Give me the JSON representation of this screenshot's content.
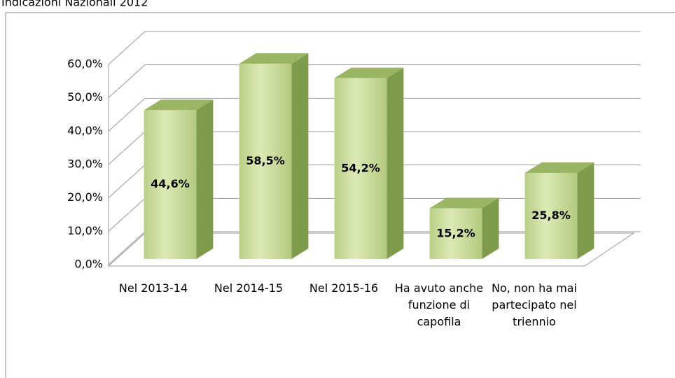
{
  "chart_data": {
    "type": "bar3d",
    "title": "Indicazioni Nazionali 2012",
    "categories": [
      "Nel 2013-14",
      "Nel 2014-15",
      "Nel 2015-16",
      "Ha avuto anche funzione di capofila",
      "No, non ha mai partecipato nel triennio"
    ],
    "values": [
      44.6,
      58.5,
      54.2,
      15.2,
      25.8
    ],
    "value_labels": [
      "44,6%",
      "58,5%",
      "54,2%",
      "15,2%",
      "25,8%"
    ],
    "color": "#c3d69b",
    "ylim": [
      0,
      60
    ],
    "yticks": [
      {
        "value": 0,
        "label": "0,0%"
      },
      {
        "value": 10,
        "label": "10,0%"
      },
      {
        "value": 20,
        "label": "20,0%"
      },
      {
        "value": 30,
        "label": "30,0%"
      },
      {
        "value": 40,
        "label": "40,0%"
      },
      {
        "value": 50,
        "label": "50,0%"
      },
      {
        "value": 60,
        "label": "60,0%"
      }
    ],
    "grid": true
  }
}
